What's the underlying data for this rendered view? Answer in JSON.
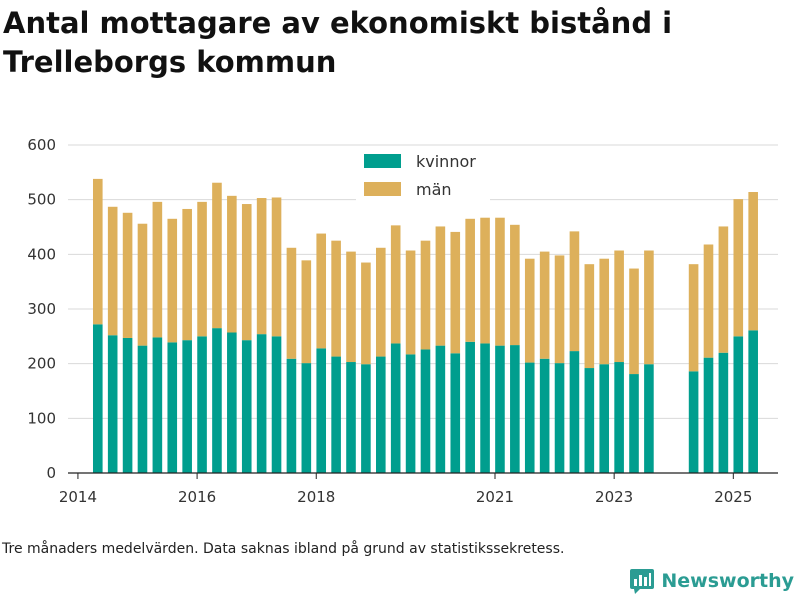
{
  "header": {
    "title": "Antal mottagare av ekonomiskt bistånd i Trelleborgs kommun"
  },
  "footer": {
    "note": "Tre månaders medelvärden. Data saknas ibland på grund av statistikssekretess.",
    "brand": "Newsworthy"
  },
  "colors": {
    "kvinnor": "#009e8e",
    "man": "#ddb05b",
    "grid": "#d9d9d9",
    "brand": "#2b9c93"
  },
  "chart_data": {
    "type": "bar",
    "stacked": true,
    "title": "Antal mottagare av ekonomiskt bistånd i Trelleborgs kommun",
    "xlabel": "",
    "ylabel": "",
    "ylim": [
      0,
      600
    ],
    "yticks": [
      0,
      100,
      200,
      300,
      400,
      500,
      600
    ],
    "grid": true,
    "legend": "top-center",
    "xaxis": {
      "range": [
        "2013-11",
        "2025-10"
      ],
      "ticks": [
        {
          "label": "2014",
          "date": "2014-01"
        },
        {
          "label": "2016",
          "date": "2016-01"
        },
        {
          "label": "2018",
          "date": "2018-01"
        },
        {
          "label": "2021",
          "date": "2021-01"
        },
        {
          "label": "2023",
          "date": "2023-01"
        },
        {
          "label": "2025",
          "date": "2025-01"
        }
      ]
    },
    "categories": [
      "2014-05",
      "2014-08",
      "2014-11",
      "2015-02",
      "2015-05",
      "2015-08",
      "2015-11",
      "2016-02",
      "2016-05",
      "2016-08",
      "2016-11",
      "2017-02",
      "2017-05",
      "2017-08",
      "2017-11",
      "2018-02",
      "2018-05",
      "2018-08",
      "2018-11",
      "2019-02",
      "2019-05",
      "2019-08",
      "2019-11",
      "2020-02",
      "2020-05",
      "2020-08",
      "2020-11",
      "2021-02",
      "2021-05",
      "2021-08",
      "2021-11",
      "2022-02",
      "2022-05",
      "2022-08",
      "2022-11",
      "2023-02",
      "2023-05",
      "2023-08",
      "2024-05",
      "2024-08",
      "2024-11",
      "2025-02",
      "2025-05"
    ],
    "series": [
      {
        "name": "kvinnor",
        "color": "#009e8e",
        "values": [
          272,
          252,
          247,
          233,
          248,
          239,
          243,
          250,
          265,
          257,
          243,
          254,
          250,
          209,
          201,
          228,
          213,
          203,
          199,
          213,
          237,
          217,
          226,
          233,
          219,
          240,
          237,
          233,
          234,
          202,
          209,
          201,
          223,
          192,
          199,
          203,
          181,
          199,
          186,
          211,
          220,
          250,
          261
        ]
      },
      {
        "name": "män",
        "color": "#ddb05b",
        "values": [
          266,
          235,
          229,
          223,
          248,
          226,
          240,
          246,
          266,
          250,
          249,
          249,
          254,
          203,
          188,
          210,
          212,
          202,
          186,
          199,
          216,
          190,
          199,
          218,
          222,
          225,
          230,
          234,
          220,
          190,
          196,
          197,
          219,
          190,
          193,
          204,
          193,
          208,
          196,
          207,
          231,
          251,
          253
        ]
      }
    ]
  }
}
